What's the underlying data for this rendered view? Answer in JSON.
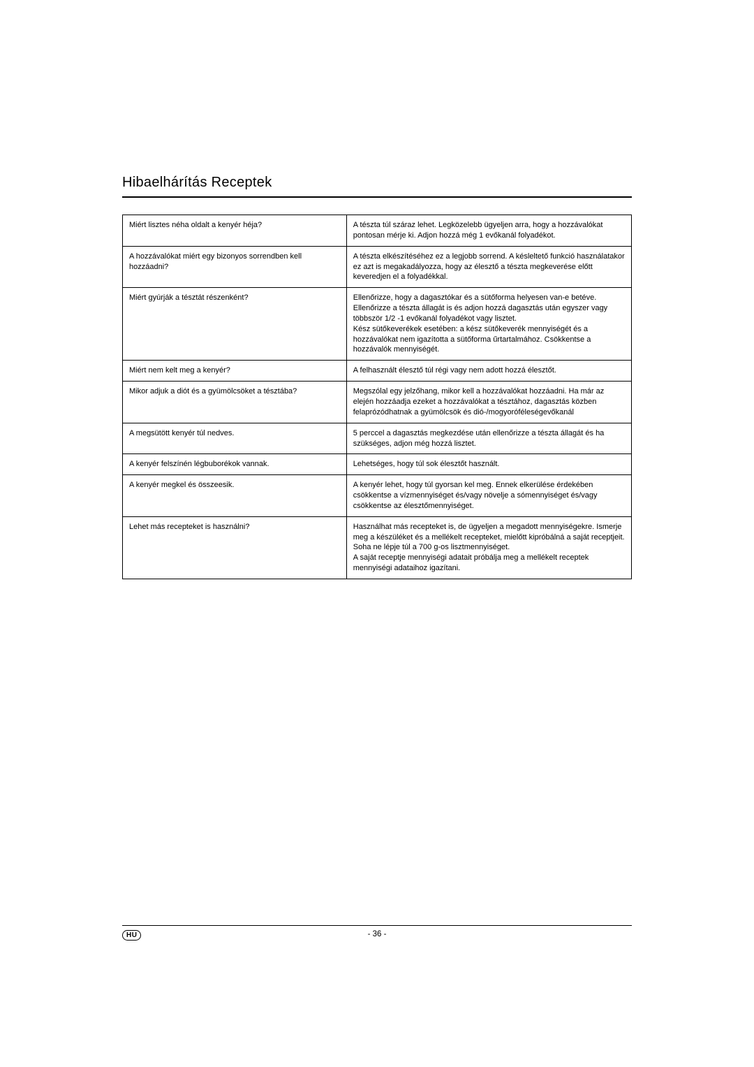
{
  "title": "Hibaelhárítás Receptek",
  "rows": [
    {
      "q": "Miért lisztes néha oldalt a kenyér héja?",
      "a": "A tészta túl száraz lehet. Legközelebb ügyeljen arra, hogy a hozzávalókat pontosan mérje ki. Adjon hozzá még 1 evőkanál folyadékot.",
      "padClass": ""
    },
    {
      "q": "A hozzávalókat miért egy bizonyos sorrendben kell hozzáadni?",
      "a": "A tészta elkészítéséhez ez a legjobb sorrend. A késleltető funkció használatakor ez azt is megakadályozza, hogy az élesztő a tészta megkeverése előtt keveredjen el a folyadékkal.",
      "padClass": ""
    },
    {
      "q": "Miért gyúrják a tésztát részenként?",
      "a": "Ellenőrizze, hogy a dagasztókar és a sütőforma helyesen van-e betéve. Ellenőrizze a tészta állagát is és adjon hozzá dagasztás után egyszer vagy többször 1/2 -1 evőkanál folyadékot vagy lisztet.\nKész sütőkeverékek esetében: a kész sütőkeverék mennyiségét és a hozzávalókat nem igazította a sütőforma űrtartalmához. Csökkentse a hozzávalók mennyiségét.",
      "padClass": "pad-bottom-2"
    },
    {
      "q": "Miért nem kelt meg a kenyér?",
      "a": "A felhasznált élesztő túl régi vagy nem adott hozzá élesztőt.",
      "padClass": "pad-bottom-1"
    },
    {
      "q": "Mikor adjuk a diót és a gyümölcsöket a tésztába?",
      "a": "Megszólal egy jelzőhang, mikor kell a hozzávalókat hozzáadni. Ha már az elején hozzáadja ezeket a hozzávalókat a tésztához, dagasztás közben felaprózódhatnak a gyümölcsök és dió-/mogyoróféleségevőkanál",
      "padClass": "pad-bottom-4"
    },
    {
      "q": "A megsütött kenyér túl nedves.",
      "a": "5 perccel a dagasztás megkezdése után ellenőrizze a tészta állagát és ha szükséges, adjon még hozzá lisztet.",
      "padClass": "pad-bottom-3"
    },
    {
      "q": "A kenyér felszínén légbuborékok vannak.",
      "a": "Lehetséges, hogy túl sok élesztőt használt.",
      "padClass": "pad-bottom-1"
    },
    {
      "q": "A kenyér megkel és összeesik.",
      "a": "A kenyér lehet, hogy túl gyorsan kel meg. Ennek elkerülése érdekében csökkentse a vízmennyiséget és/vagy növelje a sómennyiséget és/vagy csökkentse az élesztőmennyiséget.",
      "padClass": "pad-bottom-5"
    },
    {
      "q": "Lehet más recepteket is használni?",
      "a": "Használhat más recepteket is, de ügyeljen a megadott mennyiségekre. Ismerje meg a készüléket és a mellékelt recepteket, mielőtt kipróbálná a saját receptjeit.\nSoha ne lépje túl a 700 g-os lisztmennyiséget.\nA saját receptje mennyiségi adatait próbálja meg a mellékelt receptek mennyiségi adataihoz igazítani.",
      "padClass": "pad-bottom-6"
    }
  ],
  "footer": {
    "lang": "HU",
    "page": "- 36 -"
  }
}
